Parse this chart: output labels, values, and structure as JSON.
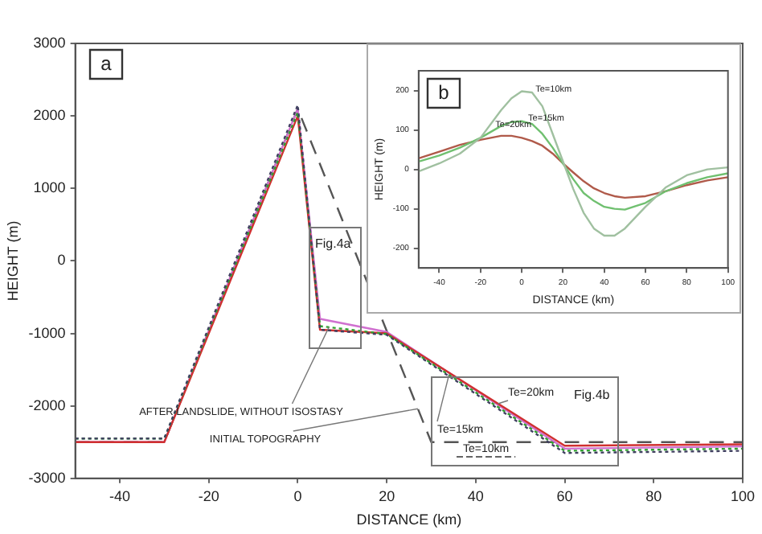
{
  "chart_data": [
    {
      "type": "line",
      "xlabel": "DISTANCE (km)",
      "ylabel": "HEIGHT (m)",
      "xlim": [
        -50,
        100
      ],
      "ylim": [
        -3000,
        3000
      ],
      "xticks": [
        -40,
        -20,
        0,
        20,
        40,
        60,
        80,
        100
      ],
      "yticks": [
        -3000,
        -2000,
        -1000,
        0,
        1000,
        2000,
        3000
      ],
      "marker": "none",
      "grid": false,
      "legend": false,
      "series": [
        {
          "color": "#404060",
          "line_style": "dotted",
          "x": [
            -50,
            -30,
            0,
            5,
            20,
            60,
            100
          ],
          "values": [
            -2450,
            -2450,
            2150,
            -950,
            -1020,
            -2650,
            -2620
          ]
        },
        {
          "color": "#30a030",
          "line_style": "dotted",
          "x": [
            -50,
            -30,
            0,
            5,
            20,
            60,
            100
          ],
          "values": [
            -2450,
            -2450,
            2050,
            -900,
            -1010,
            -2620,
            -2590
          ]
        },
        {
          "color": "#d03030",
          "line_style": "solid",
          "x": [
            -50,
            -30,
            0,
            5,
            20,
            60,
            100
          ],
          "values": [
            -2500,
            -2500,
            2000,
            -950,
            -1000,
            -2550,
            -2530
          ]
        },
        {
          "color": "#d070d0",
          "line_style": "solid",
          "x": [
            -50,
            -30,
            0,
            5,
            20,
            60,
            100
          ],
          "values": [
            -2500,
            -2500,
            2100,
            -800,
            -980,
            -2590,
            -2560
          ]
        },
        {
          "color": "#555555",
          "line_style": "dashed",
          "x": [
            -50,
            -30,
            0,
            30,
            100
          ],
          "values": [
            -2500,
            -2500,
            2100,
            -2500,
            -2500
          ]
        }
      ],
      "annotations": [
        "a",
        "Fig.4a",
        "Fig.4b",
        {
          "text": "AFTER LANDSLIDE, WITHOUT ISOSTASY",
          "x": 7,
          "y": -915
        },
        {
          "text": "INITIAL TOPOGRAPHY",
          "x": 27,
          "y": -2040
        },
        {
          "text": "Te=20km",
          "x": 45,
          "y": -1970
        },
        {
          "text": "Te=15km",
          "x": 34,
          "y": -1570
        },
        "Te=10km"
      ]
    },
    {
      "type": "line",
      "xlabel": "DISTANCE (km)",
      "ylabel": "HEIGHT (m)",
      "xlim": [
        -50,
        100
      ],
      "ylim": [
        -250,
        250
      ],
      "xticks": [
        -40,
        -20,
        0,
        20,
        40,
        60,
        80,
        100
      ],
      "yticks": [
        -200,
        -100,
        0,
        100,
        200
      ],
      "marker": "none",
      "grid": false,
      "legend": false,
      "x": [
        -50,
        -40,
        -30,
        -20,
        -10,
        -5,
        0,
        5,
        10,
        15,
        20,
        25,
        30,
        35,
        40,
        45,
        50,
        60,
        70,
        80,
        90,
        100
      ],
      "series": [
        {
          "color": "#a0c0a0",
          "values": [
            -5,
            15,
            40,
            80,
            150,
            180,
            198,
            195,
            160,
            90,
            20,
            -50,
            -110,
            -150,
            -168,
            -168,
            -150,
            -95,
            -45,
            -15,
            0,
            5
          ]
        },
        {
          "color": "#70c070",
          "values": [
            20,
            35,
            55,
            80,
            110,
            120,
            122,
            115,
            90,
            55,
            15,
            -25,
            -60,
            -80,
            -95,
            -100,
            -102,
            -85,
            -55,
            -35,
            -20,
            -10
          ]
        },
        {
          "color": "#b05a4a",
          "values": [
            28,
            45,
            62,
            75,
            85,
            85,
            80,
            72,
            60,
            40,
            15,
            -8,
            -30,
            -48,
            -60,
            -68,
            -72,
            -68,
            -55,
            -40,
            -28,
            -20
          ]
        }
      ],
      "annotations": [
        "b",
        {
          "text": "Te=10km",
          "x": 2,
          "y": 200
        },
        {
          "text": "Te=15km",
          "x": 0,
          "y": 122
        },
        {
          "text": "Te=20km",
          "x": -5,
          "y": 85
        }
      ]
    }
  ]
}
